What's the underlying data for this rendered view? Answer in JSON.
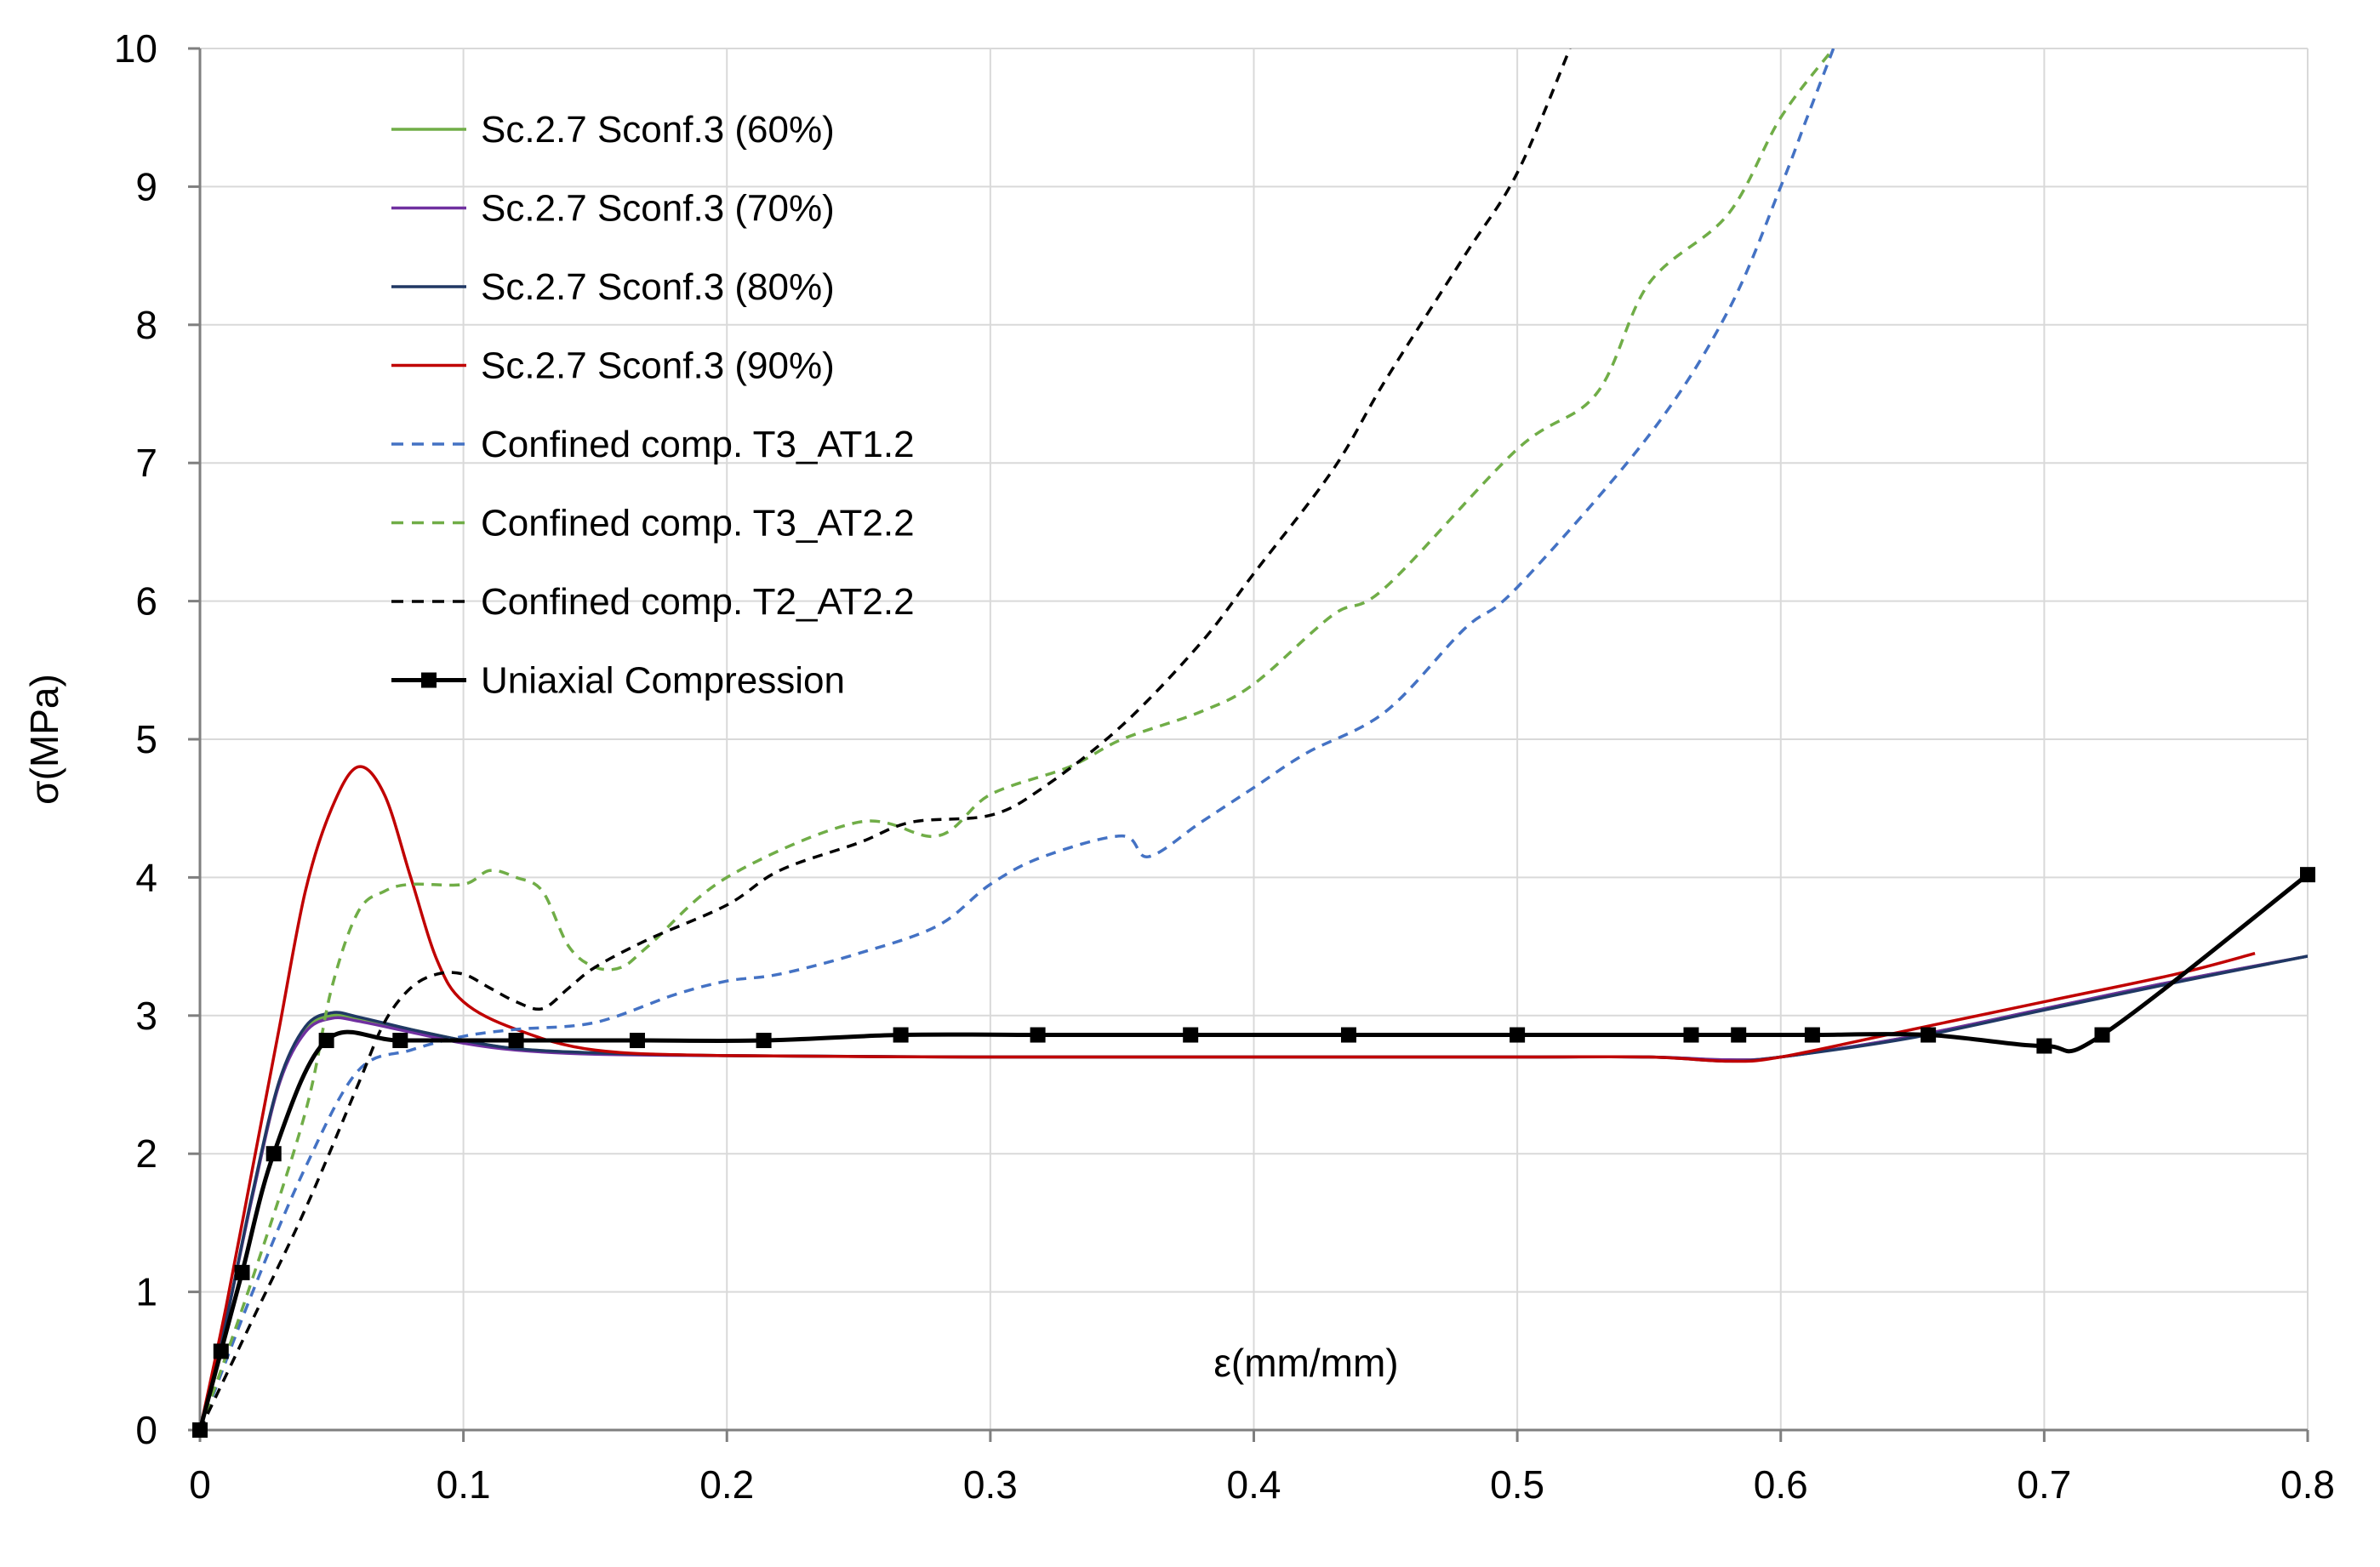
{
  "chart_data": {
    "type": "line",
    "title": "",
    "xlabel": "ε(mm/mm)",
    "ylabel": "σ(MPa)",
    "xlim": [
      0,
      0.8
    ],
    "ylim": [
      0,
      10
    ],
    "xticks": [
      0,
      0.1,
      0.2,
      0.3,
      0.4,
      0.5,
      0.6,
      0.7,
      0.8
    ],
    "xtick_labels": [
      "0",
      "0.1",
      "0.2",
      "0.3",
      "0.4",
      "0.5",
      "0.6",
      "0.7",
      "0.8"
    ],
    "yticks": [
      0,
      1,
      2,
      3,
      4,
      5,
      6,
      7,
      8,
      9,
      10
    ],
    "ytick_labels": [
      "0",
      "1",
      "2",
      "3",
      "4",
      "5",
      "6",
      "7",
      "8",
      "9",
      "10"
    ],
    "grid": true,
    "legend_position": "top-left",
    "series": [
      {
        "name": "Sc.2.7 Sconf.3 (60%)",
        "color": "#70AD47",
        "style": "solid",
        "marker": "none",
        "x": [
          0,
          0.01,
          0.02,
          0.03,
          0.04,
          0.05,
          0.06,
          0.08,
          0.1,
          0.12,
          0.15,
          0.2,
          0.3,
          0.4,
          0.5,
          0.55,
          0.58,
          0.6,
          0.65,
          0.7,
          0.75,
          0.8
        ],
        "y": [
          0,
          0.8,
          1.7,
          2.5,
          2.9,
          3.0,
          2.98,
          2.9,
          2.82,
          2.76,
          2.73,
          2.71,
          2.7,
          2.7,
          2.7,
          2.7,
          2.68,
          2.7,
          2.85,
          3.05,
          3.25,
          3.43
        ]
      },
      {
        "name": "Sc.2.7 Sconf.3 (70%)",
        "color": "#7030A0",
        "style": "solid",
        "marker": "none",
        "x": [
          0,
          0.01,
          0.02,
          0.03,
          0.04,
          0.05,
          0.06,
          0.08,
          0.1,
          0.12,
          0.15,
          0.2,
          0.3,
          0.4,
          0.5,
          0.55,
          0.58,
          0.6,
          0.65,
          0.7,
          0.75,
          0.8
        ],
        "y": [
          0,
          0.8,
          1.7,
          2.5,
          2.88,
          2.98,
          2.96,
          2.88,
          2.8,
          2.75,
          2.72,
          2.71,
          2.7,
          2.7,
          2.7,
          2.7,
          2.68,
          2.7,
          2.85,
          3.05,
          3.25,
          3.43
        ]
      },
      {
        "name": "Sc.2.7 Sconf.3 (80%)",
        "color": "#203864",
        "style": "solid",
        "marker": "none",
        "x": [
          0,
          0.01,
          0.02,
          0.03,
          0.04,
          0.05,
          0.06,
          0.08,
          0.1,
          0.12,
          0.15,
          0.2,
          0.3,
          0.4,
          0.5,
          0.55,
          0.58,
          0.6,
          0.65,
          0.7,
          0.75,
          0.8
        ],
        "y": [
          0,
          0.8,
          1.72,
          2.52,
          2.92,
          3.02,
          2.99,
          2.9,
          2.82,
          2.76,
          2.73,
          2.71,
          2.7,
          2.7,
          2.7,
          2.7,
          2.67,
          2.7,
          2.84,
          3.04,
          3.24,
          3.43
        ]
      },
      {
        "name": "Sc.2.7 Sconf.3 (90%)",
        "color": "#C00000",
        "style": "solid",
        "marker": "none",
        "x": [
          0,
          0.01,
          0.02,
          0.03,
          0.04,
          0.05,
          0.06,
          0.07,
          0.08,
          0.09,
          0.1,
          0.12,
          0.15,
          0.2,
          0.3,
          0.4,
          0.5,
          0.55,
          0.58,
          0.6,
          0.65,
          0.7,
          0.75,
          0.78
        ],
        "y": [
          0,
          0.9,
          1.9,
          2.9,
          3.9,
          4.5,
          4.8,
          4.6,
          4.0,
          3.4,
          3.1,
          2.9,
          2.75,
          2.71,
          2.7,
          2.7,
          2.7,
          2.7,
          2.67,
          2.7,
          2.9,
          3.1,
          3.3,
          3.45
        ]
      },
      {
        "name": "Confined comp. T3_AT1.2",
        "color": "#4472C4",
        "style": "dashed",
        "marker": "none",
        "x": [
          0,
          0.02,
          0.04,
          0.06,
          0.08,
          0.1,
          0.12,
          0.15,
          0.18,
          0.2,
          0.22,
          0.25,
          0.28,
          0.3,
          0.32,
          0.35,
          0.36,
          0.38,
          0.4,
          0.42,
          0.45,
          0.48,
          0.5,
          0.55,
          0.58,
          0.6,
          0.61,
          0.62
        ],
        "y": [
          0,
          1.0,
          1.9,
          2.6,
          2.75,
          2.85,
          2.9,
          2.95,
          3.15,
          3.25,
          3.3,
          3.45,
          3.65,
          3.95,
          4.15,
          4.3,
          4.15,
          4.4,
          4.65,
          4.9,
          5.2,
          5.8,
          6.1,
          7.2,
          8.1,
          9.0,
          9.5,
          10.0
        ]
      },
      {
        "name": "Confined comp. T3_AT2.2",
        "color": "#70AD47",
        "style": "dashed",
        "marker": "none",
        "x": [
          0,
          0.02,
          0.04,
          0.05,
          0.06,
          0.07,
          0.08,
          0.1,
          0.11,
          0.12,
          0.13,
          0.14,
          0.15,
          0.16,
          0.17,
          0.2,
          0.25,
          0.28,
          0.3,
          0.33,
          0.35,
          0.38,
          0.4,
          0.43,
          0.45,
          0.5,
          0.53,
          0.55,
          0.58,
          0.6,
          0.62
        ],
        "y": [
          0,
          1.1,
          2.3,
          3.2,
          3.75,
          3.9,
          3.95,
          3.95,
          4.05,
          4.0,
          3.9,
          3.5,
          3.35,
          3.35,
          3.5,
          4.0,
          4.4,
          4.3,
          4.6,
          4.8,
          5.0,
          5.2,
          5.4,
          5.9,
          6.1,
          7.1,
          7.5,
          8.3,
          8.8,
          9.5,
          10.0
        ]
      },
      {
        "name": "Confined comp. T2_AT2.2",
        "color": "#000000",
        "style": "dashed",
        "marker": "none",
        "x": [
          0,
          0.02,
          0.04,
          0.06,
          0.07,
          0.08,
          0.09,
          0.1,
          0.11,
          0.12,
          0.13,
          0.14,
          0.15,
          0.17,
          0.2,
          0.22,
          0.25,
          0.27,
          0.3,
          0.32,
          0.35,
          0.38,
          0.4,
          0.43,
          0.45,
          0.48,
          0.5,
          0.52
        ],
        "y": [
          0,
          0.8,
          1.6,
          2.5,
          2.95,
          3.2,
          3.3,
          3.3,
          3.2,
          3.1,
          3.05,
          3.2,
          3.35,
          3.55,
          3.8,
          4.05,
          4.25,
          4.4,
          4.45,
          4.65,
          5.1,
          5.7,
          6.2,
          6.95,
          7.6,
          8.5,
          9.1,
          10.0
        ]
      },
      {
        "name": "Uniaxial Compression",
        "color": "#000000",
        "style": "solid",
        "marker": "square",
        "x": [
          0,
          0.008,
          0.016,
          0.028,
          0.048,
          0.076,
          0.12,
          0.166,
          0.214,
          0.266,
          0.318,
          0.376,
          0.436,
          0.5,
          0.566,
          0.584,
          0.612,
          0.656,
          0.7,
          0.722,
          0.8
        ],
        "y": [
          0,
          0.57,
          1.14,
          2.0,
          2.82,
          2.82,
          2.82,
          2.82,
          2.82,
          2.86,
          2.86,
          2.86,
          2.86,
          2.86,
          2.86,
          2.86,
          2.86,
          2.86,
          2.78,
          2.86,
          4.02
        ]
      }
    ]
  }
}
